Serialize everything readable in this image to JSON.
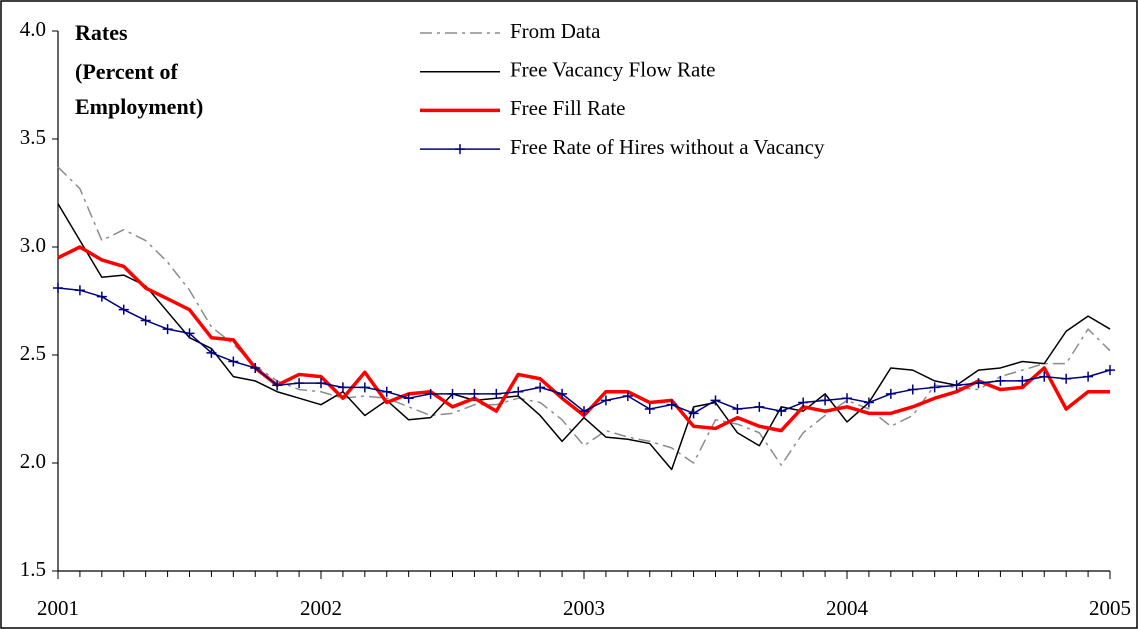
{
  "chart_data": {
    "type": "line",
    "title": [
      "Rates",
      "(Percent of",
      "Employment)"
    ],
    "categories": [
      "2001",
      null,
      null,
      null,
      null,
      null,
      null,
      null,
      null,
      null,
      null,
      null,
      "2002",
      null,
      null,
      null,
      null,
      null,
      null,
      null,
      null,
      null,
      null,
      null,
      "2003",
      null,
      null,
      null,
      null,
      null,
      null,
      null,
      null,
      null,
      null,
      null,
      "2004",
      null,
      null,
      null,
      null,
      null,
      null,
      null,
      null,
      null,
      null,
      null,
      "2005"
    ],
    "ylim": [
      1.5,
      4.0
    ],
    "yticks": [
      1.5,
      {
        "value": 2,
        "label": "2.0"
      },
      2.5,
      {
        "value": 3,
        "label": "3.0"
      },
      3.5,
      {
        "value": 4,
        "label": "4.0"
      }
    ],
    "legend": "top",
    "series": [
      {
        "name": "From Data",
        "color": "#8c8c8c",
        "dash": "dash-dot",
        "width": 1.5,
        "values": [
          3.37,
          3.27,
          3.03,
          3.08,
          3.03,
          2.93,
          2.8,
          2.63,
          2.55,
          2.45,
          2.38,
          2.34,
          2.33,
          2.3,
          2.31,
          2.3,
          2.26,
          2.22,
          2.23,
          2.27,
          2.27,
          2.3,
          2.28,
          2.2,
          2.08,
          2.15,
          2.12,
          2.1,
          2.07,
          2.0,
          2.2,
          2.18,
          2.14,
          1.99,
          2.14,
          2.22,
          2.29,
          2.25,
          2.17,
          2.22,
          2.36,
          2.35,
          2.34,
          2.4,
          2.43,
          2.46,
          2.46,
          2.62,
          2.52
        ]
      },
      {
        "name": "Free Vacancy Flow Rate",
        "color": "#000000",
        "dash": "solid",
        "width": 1.5,
        "values": [
          3.2,
          3.03,
          2.86,
          2.87,
          2.82,
          2.7,
          2.58,
          2.53,
          2.4,
          2.38,
          2.33,
          2.3,
          2.27,
          2.33,
          2.22,
          2.29,
          2.2,
          2.21,
          2.32,
          2.29,
          2.3,
          2.31,
          2.22,
          2.1,
          2.21,
          2.12,
          2.11,
          2.09,
          1.97,
          2.26,
          2.28,
          2.14,
          2.08,
          2.26,
          2.24,
          2.32,
          2.19,
          2.28,
          2.44,
          2.43,
          2.38,
          2.36,
          2.43,
          2.44,
          2.47,
          2.46,
          2.61,
          2.68,
          2.62
        ]
      },
      {
        "name": "Free Fill Rate",
        "color": "#ff0000",
        "dash": "solid",
        "width": 3.5,
        "values": [
          2.95,
          3.0,
          2.94,
          2.91,
          2.81,
          2.76,
          2.71,
          2.58,
          2.57,
          2.44,
          2.36,
          2.41,
          2.4,
          2.3,
          2.42,
          2.28,
          2.32,
          2.33,
          2.26,
          2.3,
          2.24,
          2.41,
          2.39,
          2.3,
          2.22,
          2.33,
          2.33,
          2.28,
          2.29,
          2.17,
          2.16,
          2.21,
          2.17,
          2.15,
          2.26,
          2.24,
          2.26,
          2.23,
          2.23,
          2.26,
          2.3,
          2.33,
          2.38,
          2.34,
          2.35,
          2.44,
          2.25,
          2.33,
          2.33
        ]
      },
      {
        "name": "Free  Rate of Hires without a Vacancy",
        "color": "#000080",
        "dash": "solid",
        "width": 1.5,
        "marker": "+",
        "values": [
          2.81,
          2.8,
          2.77,
          2.71,
          2.66,
          2.62,
          2.6,
          2.51,
          2.47,
          2.44,
          2.36,
          2.37,
          2.37,
          2.35,
          2.35,
          2.33,
          2.3,
          2.32,
          2.32,
          2.32,
          2.32,
          2.33,
          2.35,
          2.32,
          2.24,
          2.29,
          2.31,
          2.25,
          2.27,
          2.23,
          2.29,
          2.25,
          2.26,
          2.24,
          2.28,
          2.29,
          2.3,
          2.28,
          2.32,
          2.34,
          2.35,
          2.36,
          2.37,
          2.38,
          2.38,
          2.4,
          2.39,
          2.4,
          2.43
        ]
      }
    ]
  }
}
